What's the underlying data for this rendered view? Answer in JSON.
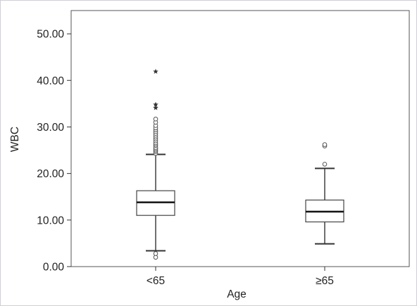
{
  "chart_data": {
    "type": "box",
    "title": "",
    "xlabel": "Age",
    "ylabel": "WBC",
    "ylim": [
      0,
      55
    ],
    "yticks": [
      0,
      10,
      20,
      30,
      40,
      50
    ],
    "ytick_labels": [
      "0.00",
      "10.00",
      "20.00",
      "30.00",
      "40.00",
      "50.00"
    ],
    "categories": [
      "<65",
      "≥65"
    ],
    "boxes": [
      {
        "category": "<65",
        "whisker_low": 3.4,
        "q1": 11.0,
        "median": 13.8,
        "q3": 16.3,
        "whisker_high": 24.1,
        "outliers": [
          2.0,
          2.8,
          24.3,
          24.7,
          25.0,
          25.3,
          25.6,
          26.0,
          26.3,
          26.6,
          27.0,
          27.4,
          27.8,
          28.2,
          28.6,
          29.0,
          29.4,
          29.8,
          30.3,
          31.0,
          31.7
        ],
        "extremes": [
          34.1,
          34.8,
          41.9
        ]
      },
      {
        "category": "≥65",
        "whisker_low": 4.9,
        "q1": 9.6,
        "median": 11.8,
        "q3": 14.3,
        "whisker_high": 21.1,
        "outliers": [
          22.0,
          25.9,
          26.2
        ],
        "extremes": []
      }
    ],
    "grid": false,
    "legend": "none"
  }
}
